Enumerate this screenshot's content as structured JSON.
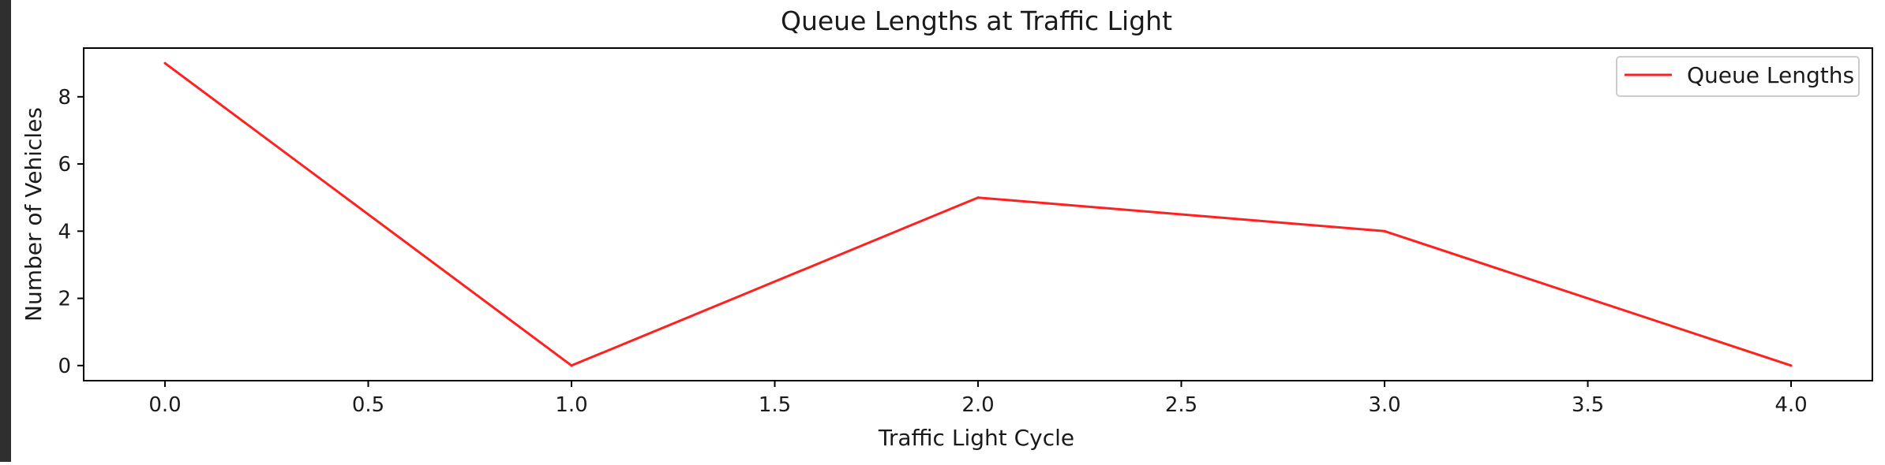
{
  "chart_data": {
    "type": "line",
    "title": "Queue Lengths at Traffic Light",
    "xlabel": "Traffic Light Cycle",
    "ylabel": "Number of Vehicles",
    "xlim": [
      -0.2,
      4.2
    ],
    "ylim": [
      -0.45,
      9.45
    ],
    "x_ticks": [
      0.0,
      0.5,
      1.0,
      1.5,
      2.0,
      2.5,
      3.0,
      3.5,
      4.0
    ],
    "x_tick_labels": [
      "0.0",
      "0.5",
      "1.0",
      "1.5",
      "2.0",
      "2.5",
      "3.0",
      "3.5",
      "4.0"
    ],
    "y_ticks": [
      0,
      2,
      4,
      6,
      8
    ],
    "y_tick_labels": [
      "0",
      "2",
      "4",
      "6",
      "8"
    ],
    "grid": false,
    "legend_position": "top-right",
    "series": [
      {
        "name": "Queue Lengths",
        "color": "#ff2020",
        "x": [
          0,
          1,
          2,
          3,
          4
        ],
        "y": [
          9,
          0,
          5,
          4,
          0
        ]
      }
    ]
  }
}
